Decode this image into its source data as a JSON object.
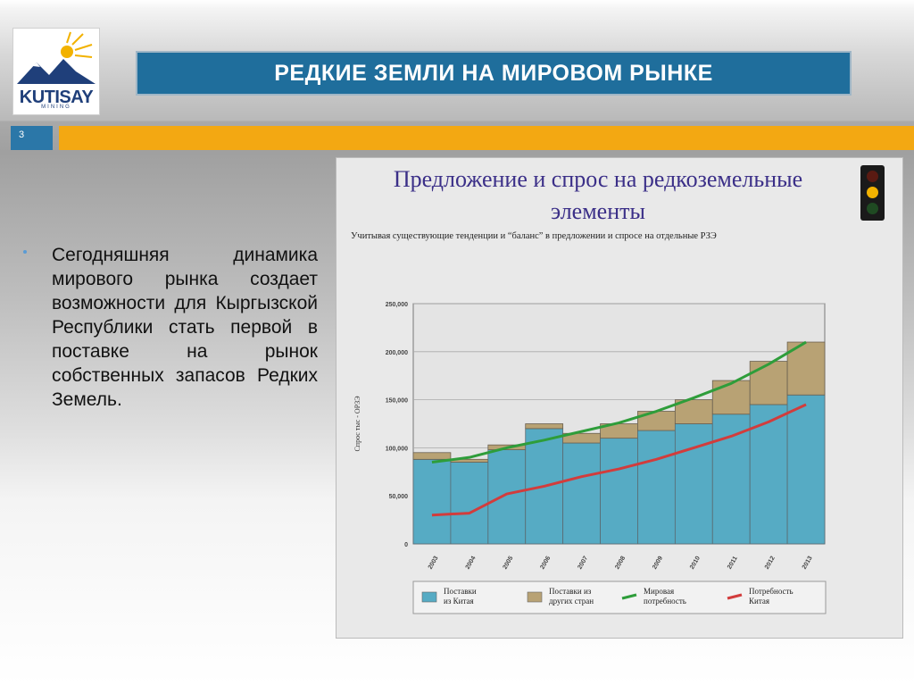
{
  "logo": {
    "brand": "KUTISAY",
    "sub": "MINING"
  },
  "header": {
    "title": "РЕДКИЕ ЗЕМЛИ НА МИРОВОМ РЫНКЕ",
    "slide_number": "3"
  },
  "body": {
    "bullet": "Сегодняшняя динамика мирового рынка создает возможности для Кыргызской Республики стать первой в поставке на рынок собственных запасов Редких Земель."
  },
  "colors": {
    "title_bar": "#1f6e9c",
    "accent_bar": "#f3a812",
    "china_supply": "#56abc4",
    "other_supply": "#b8a274",
    "world_demand": "#2e9d3a",
    "china_demand": "#d23c3c"
  },
  "chart_data": {
    "type": "bar",
    "title": "Предложение и спрос на редкоземельные элементы",
    "subtitle": "Учитывая существующие тенденции и “баланс” в предложении и спросе на отдельные РЗЭ",
    "ylabel": "Спрос тыс - ОРЗЭ",
    "ylim": [
      0,
      250000
    ],
    "yticks": [
      "0",
      "50,000",
      "100,000",
      "150,000",
      "200,000",
      "250,000"
    ],
    "categories": [
      "2003",
      "2004",
      "2005",
      "2006",
      "2007",
      "2008",
      "2009",
      "2010",
      "2011",
      "2012",
      "2013"
    ],
    "series": [
      {
        "name": "Поставки из Китая",
        "kind": "bar",
        "values": [
          88000,
          85000,
          98000,
          120000,
          105000,
          110000,
          118000,
          125000,
          135000,
          145000,
          155000
        ]
      },
      {
        "name": "Поставки из других стран",
        "kind": "bar",
        "values": [
          7000,
          3000,
          5000,
          5000,
          10000,
          15000,
          20000,
          25000,
          35000,
          45000,
          55000
        ]
      },
      {
        "name": "Мировая потребность",
        "kind": "line",
        "values": [
          85000,
          90000,
          100000,
          108000,
          117000,
          126000,
          138000,
          152000,
          167000,
          187000,
          210000
        ]
      },
      {
        "name": "Потребность Китая",
        "kind": "line",
        "values": [
          30000,
          32000,
          52000,
          60000,
          70000,
          78000,
          88000,
          100000,
          112000,
          127000,
          145000
        ]
      }
    ],
    "legend": [
      "Поставки из Китая",
      "Поставки из других стран",
      "Мировая потребность",
      "Потребность Китая"
    ]
  }
}
